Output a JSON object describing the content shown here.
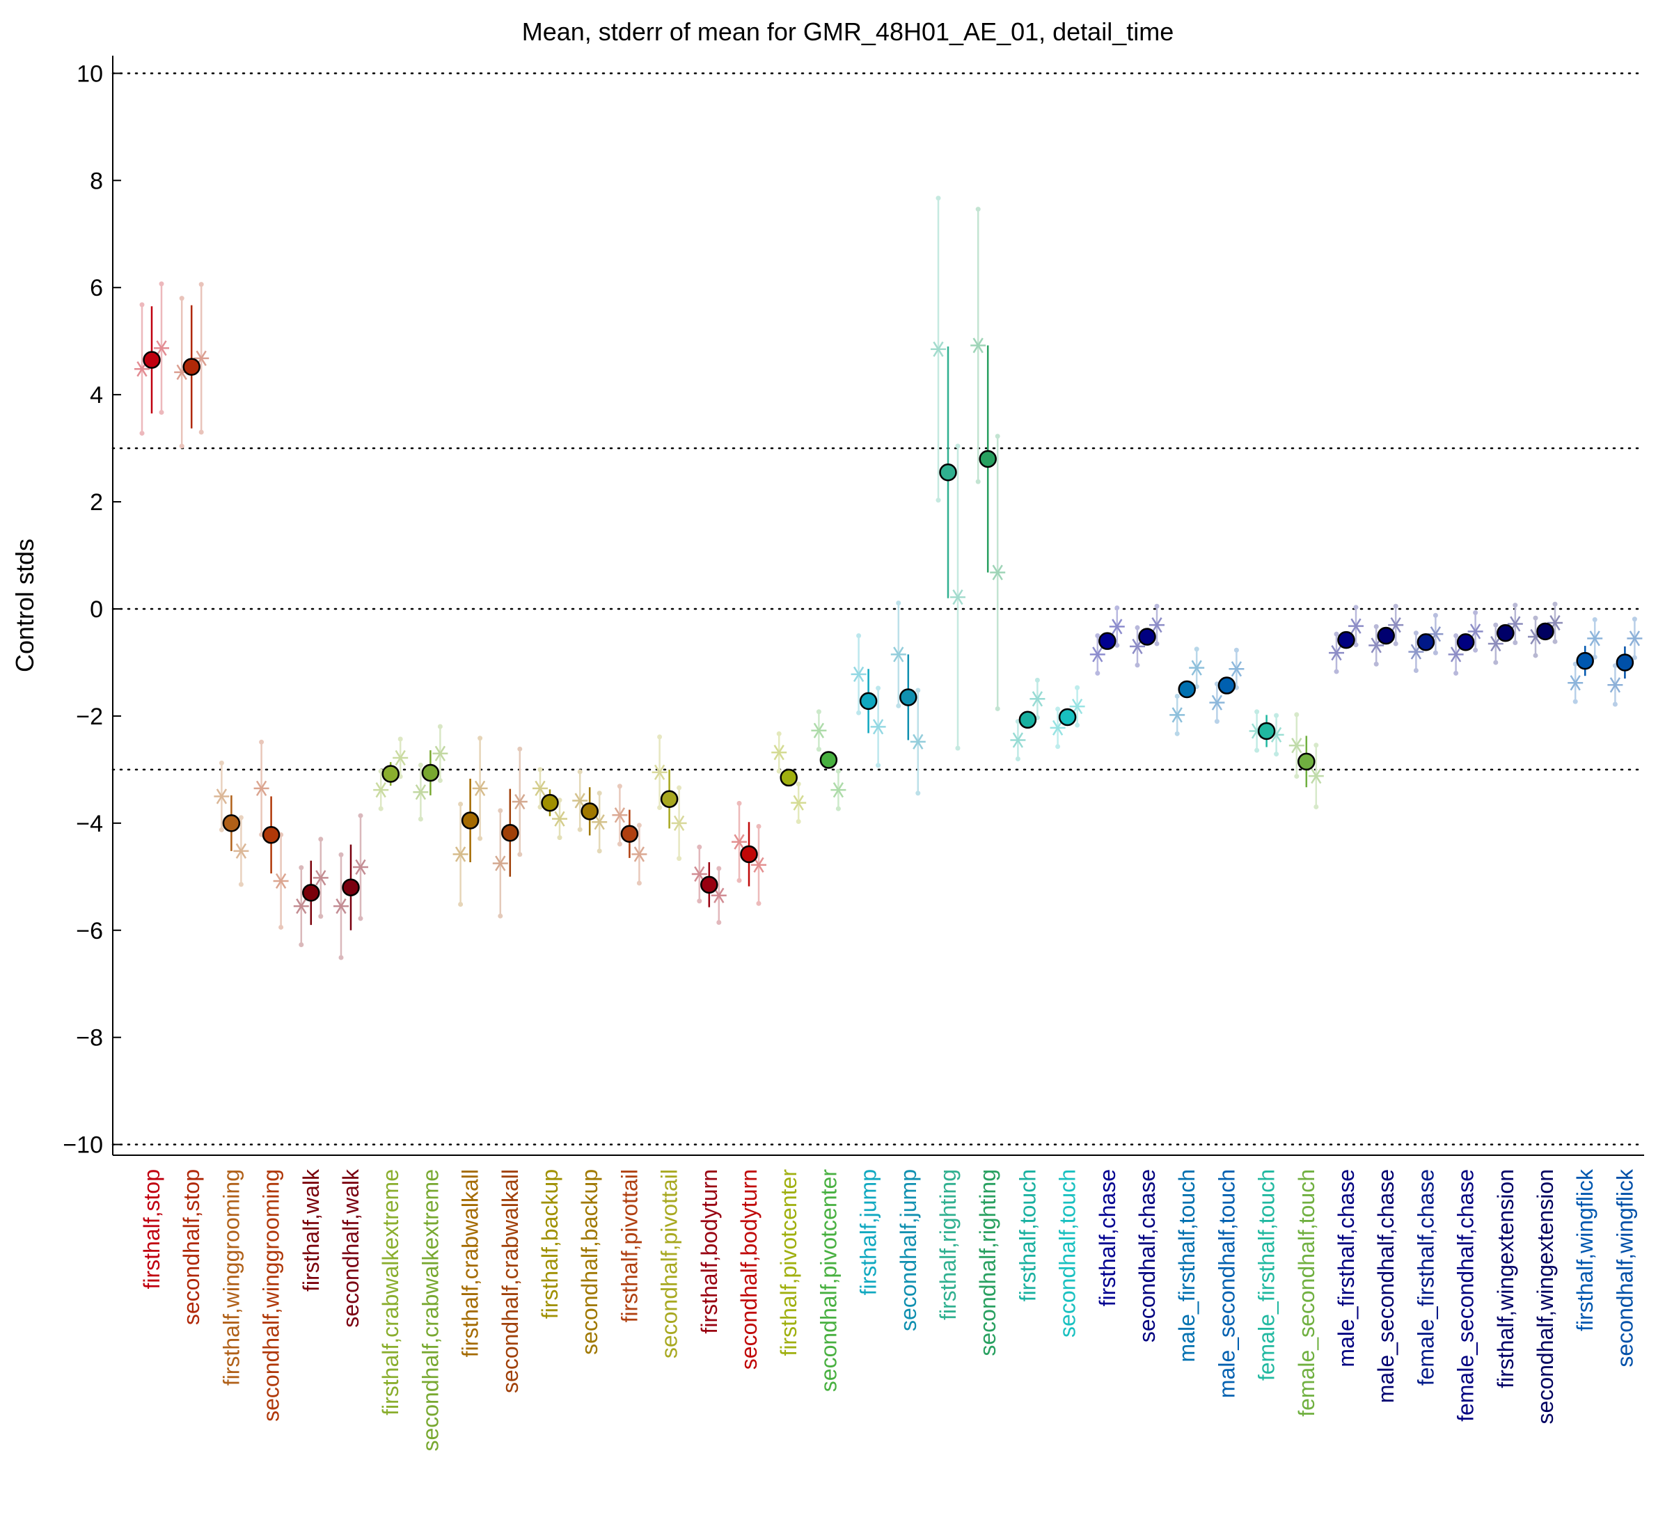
{
  "chart_data": {
    "type": "scatter",
    "title": "Mean, stderr of mean for GMR_48H01_AE_01, detail_time",
    "xlabel": "",
    "ylabel": "Control stds",
    "ylim": [
      -10.2,
      10.2
    ],
    "yticks": [
      10,
      8,
      6,
      4,
      2,
      0,
      -2,
      -4,
      -6,
      -8,
      -10
    ],
    "reference_lines": [
      10,
      3,
      0,
      -3,
      -10
    ],
    "grid": false,
    "categories": [
      "firsthalf,stop",
      "secondhalf,stop",
      "firsthalf,winggrooming",
      "secondhalf,winggrooming",
      "firsthalf,walk",
      "secondhalf,walk",
      "firsthalf,crabwalkextreme",
      "secondhalf,crabwalkextreme",
      "firsthalf,crabwalkall",
      "secondhalf,crabwalkall",
      "firsthalf,backup",
      "secondhalf,backup",
      "firsthalf,pivottail",
      "secondhalf,pivottail",
      "firsthalf,bodyturn",
      "secondhalf,bodyturn",
      "firsthalf,pivotcenter",
      "secondhalf,pivotcenter",
      "firsthalf,jump",
      "secondhalf,jump",
      "firsthalf,righting",
      "secondhalf,righting",
      "firsthalf,touch",
      "secondhalf,touch",
      "firsthalf,chase",
      "secondhalf,chase",
      "male_firsthalf,touch",
      "male_secondhalf,touch",
      "female_firsthalf,touch",
      "female_secondhalf,touch",
      "male_firsthalf,chase",
      "male_secondhalf,chase",
      "female_firsthalf,chase",
      "female_secondhalf,chase",
      "firsthalf,wingextension",
      "secondhalf,wingextension",
      "firsthalf,wingflick",
      "secondhalf,wingflick"
    ],
    "colors": [
      "#c0000f",
      "#b02808",
      "#b06018",
      "#b03808",
      "#7a000a",
      "#7a0010",
      "#8aae2e",
      "#78a830",
      "#a46a00",
      "#a04008",
      "#a09000",
      "#a07800",
      "#b04010",
      "#a8a820",
      "#980010",
      "#c00808",
      "#a0b010",
      "#48b040",
      "#10a8c0",
      "#1090b0",
      "#30b090",
      "#28a060",
      "#18b0a0",
      "#18c0c0",
      "#000090",
      "#000080",
      "#0070b0",
      "#0060b0",
      "#20b8a0",
      "#70b040",
      "#000080",
      "#000070",
      "#001888",
      "#000080",
      "#000068",
      "#000060",
      "#0058b0",
      "#0050a8"
    ],
    "means": [
      4.65,
      4.52,
      -4.0,
      -4.22,
      -5.3,
      -5.2,
      -3.08,
      -3.06,
      -3.95,
      -4.18,
      -3.62,
      -3.78,
      -4.2,
      -3.55,
      -5.15,
      -4.58,
      -3.15,
      -2.82,
      -1.72,
      -1.65,
      2.55,
      2.8,
      -2.07,
      -2.02,
      -0.6,
      -0.52,
      -1.5,
      -1.43,
      -2.28,
      -2.85,
      -0.58,
      -0.5,
      -0.62,
      -0.62,
      -0.45,
      -0.42,
      -0.97,
      -1.0
    ],
    "sem": [
      1.0,
      1.15,
      0.52,
      0.72,
      0.6,
      0.8,
      0.22,
      0.42,
      0.78,
      0.82,
      0.25,
      0.45,
      0.45,
      0.55,
      0.42,
      0.6,
      0.1,
      0.15,
      0.6,
      0.8,
      2.35,
      2.12,
      0.12,
      0.12,
      0.15,
      0.15,
      0.12,
      0.12,
      0.3,
      0.48,
      0.12,
      0.12,
      0.12,
      0.12,
      0.12,
      0.12,
      0.28,
      0.3
    ],
    "asterisks": [
      [
        4.48,
        4.87
      ],
      [
        4.42,
        4.68
      ],
      [
        -3.5,
        -4.52
      ],
      [
        -3.35,
        -5.08
      ],
      [
        -5.55,
        -5.02
      ],
      [
        -5.55,
        -4.82
      ],
      [
        -3.38,
        -2.78
      ],
      [
        -3.42,
        -2.7
      ],
      [
        -4.58,
        -3.35
      ],
      [
        -4.75,
        -3.6
      ],
      [
        -3.35,
        -3.92
      ],
      [
        -3.58,
        -3.98
      ],
      [
        -3.85,
        -4.58
      ],
      [
        -3.05,
        -4.0
      ],
      [
        -4.95,
        -5.35
      ],
      [
        -4.35,
        -4.78
      ],
      [
        -2.68,
        -3.62
      ],
      [
        -2.27,
        -3.38
      ],
      [
        -1.22,
        -2.2
      ],
      [
        -0.85,
        -2.48
      ],
      [
        4.85,
        0.22
      ],
      [
        4.92,
        0.68
      ],
      [
        -2.45,
        -1.68
      ],
      [
        -2.22,
        -1.82
      ],
      [
        -0.85,
        -0.33
      ],
      [
        -0.7,
        -0.3
      ],
      [
        -1.98,
        -1.1
      ],
      [
        -1.75,
        -1.12
      ],
      [
        -2.28,
        -2.35
      ],
      [
        -2.55,
        -3.12
      ],
      [
        -0.82,
        -0.32
      ],
      [
        -0.68,
        -0.3
      ],
      [
        -0.8,
        -0.47
      ],
      [
        -0.85,
        -0.42
      ],
      [
        -0.65,
        -0.28
      ],
      [
        -0.52,
        -0.26
      ],
      [
        -1.38,
        -0.55
      ],
      [
        -1.42,
        -0.55
      ]
    ]
  }
}
